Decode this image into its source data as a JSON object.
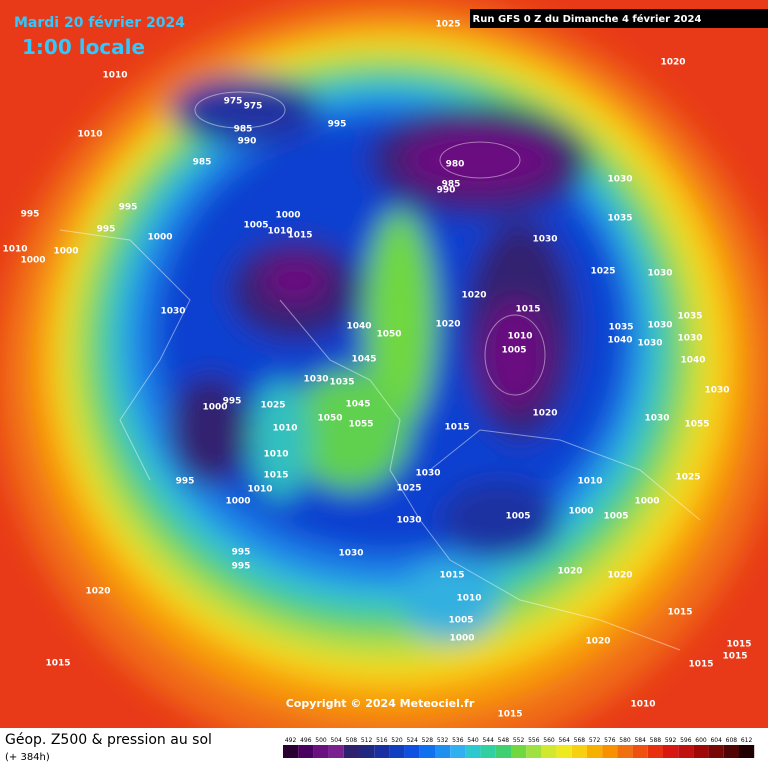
{
  "header": {
    "date": "Mardi 20 février 2024",
    "time": "1:00 locale",
    "run": "Run GFS 0 Z du Dimanche 4 février 2024"
  },
  "footer": {
    "title": "Géop. Z500 & pression au sol",
    "lead": "(+ 384h)",
    "copyright": "Copyright © 2024 Meteociel.fr"
  },
  "colorbar": {
    "ticks": [
      492,
      496,
      500,
      504,
      508,
      512,
      516,
      520,
      524,
      528,
      532,
      536,
      540,
      544,
      548,
      552,
      556,
      560,
      564,
      568,
      572,
      576,
      580,
      584,
      588,
      592,
      596,
      600,
      604,
      608,
      612
    ],
    "colors": [
      "#2a0030",
      "#4a0060",
      "#6a1080",
      "#7a2090",
      "#302070",
      "#202880",
      "#1a30a0",
      "#1040c0",
      "#1050e0",
      "#1070f0",
      "#2090f0",
      "#30b0f0",
      "#30c8d0",
      "#30d0a0",
      "#40d070",
      "#70d840",
      "#a0e040",
      "#d0e830",
      "#f0e820",
      "#f8d010",
      "#f8b000",
      "#f89000",
      "#f07010",
      "#f05010",
      "#e83010",
      "#d81810",
      "#c01010",
      "#a00808",
      "#780808",
      "#500404",
      "#200000"
    ]
  },
  "isobars": [
    "1025",
    "1020",
    "1010",
    "975",
    "975",
    "985",
    "995",
    "990",
    "1010",
    "985",
    "980",
    "985",
    "990",
    "1030",
    "995",
    "995",
    "995",
    "1000",
    "1000",
    "1005",
    "1010",
    "1015",
    "1035",
    "1030",
    "1010",
    "1000",
    "1000",
    "1025",
    "1030",
    "1020",
    "1015",
    "1030",
    "1040",
    "1050",
    "1020",
    "1035",
    "1030",
    "1035",
    "1010",
    "1005",
    "1040",
    "1030",
    "1045",
    "1030",
    "1040",
    "1030",
    "1035",
    "1030",
    "995",
    "1000",
    "1025",
    "1045",
    "1050",
    "1055",
    "1020",
    "1030",
    "1015",
    "1010",
    "1055",
    "1010",
    "1030",
    "1015",
    "1025",
    "1010",
    "1025",
    "995",
    "1000",
    "1000",
    "1010",
    "1005",
    "1000",
    "1005",
    "1030",
    "995",
    "995",
    "1030",
    "1020",
    "1020",
    "1015",
    "1010",
    "1020",
    "1005",
    "1000",
    "1020",
    "1015",
    "1015",
    "1015",
    "1015",
    "1015",
    "1010",
    "1015"
  ]
}
